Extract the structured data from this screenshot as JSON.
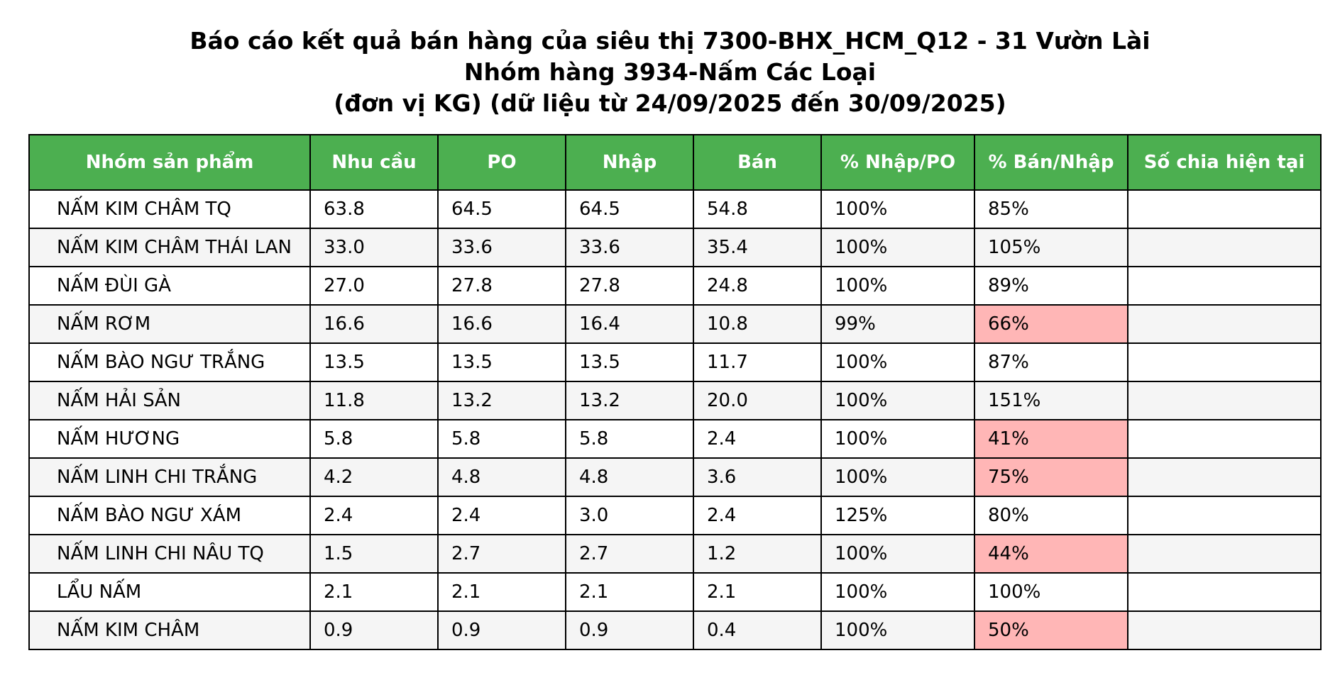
{
  "title": {
    "line1": "Báo cáo kết quả bán hàng của siêu thị 7300-BHX_HCM_Q12 - 31 Vườn Lài",
    "line2": "Nhóm hàng 3934-Nấm Các Loại",
    "line3": "(đơn vị KG) (dữ liệu từ 24/09/2025 đến 30/09/2025)"
  },
  "colors": {
    "header_bg": "#4caf50",
    "header_text": "#ffffff",
    "highlight_bg": "#ffb6b6",
    "alt_row_bg": "#f5f5f5"
  },
  "table": {
    "headers": [
      "Nhóm sản phẩm",
      "Nhu cầu",
      "PO",
      "Nhập",
      "Bán",
      "% Nhập/PO",
      "% Bán/Nhập",
      "Số chia hiện tại"
    ],
    "rows": [
      {
        "name": "NẤM KIM CHÂM TQ",
        "nhu_cau": "63.8",
        "po": "64.5",
        "nhap": "64.5",
        "ban": "54.8",
        "pct_nhap_po": "100%",
        "pct_ban_nhap": "85%",
        "so_chia": "",
        "highlight": false
      },
      {
        "name": "NẤM KIM CHÂM THÁI LAN",
        "nhu_cau": "33.0",
        "po": "33.6",
        "nhap": "33.6",
        "ban": "35.4",
        "pct_nhap_po": "100%",
        "pct_ban_nhap": "105%",
        "so_chia": "",
        "highlight": false
      },
      {
        "name": "NẤM ĐÙI GÀ",
        "nhu_cau": "27.0",
        "po": "27.8",
        "nhap": "27.8",
        "ban": "24.8",
        "pct_nhap_po": "100%",
        "pct_ban_nhap": "89%",
        "so_chia": "",
        "highlight": false
      },
      {
        "name": "NẤM RƠM",
        "nhu_cau": "16.6",
        "po": "16.6",
        "nhap": "16.4",
        "ban": "10.8",
        "pct_nhap_po": "99%",
        "pct_ban_nhap": "66%",
        "so_chia": "",
        "highlight": true
      },
      {
        "name": "NẤM BÀO NGƯ TRẮNG",
        "nhu_cau": "13.5",
        "po": "13.5",
        "nhap": "13.5",
        "ban": "11.7",
        "pct_nhap_po": "100%",
        "pct_ban_nhap": "87%",
        "so_chia": "",
        "highlight": false
      },
      {
        "name": "NẤM HẢI SẢN",
        "nhu_cau": "11.8",
        "po": "13.2",
        "nhap": "13.2",
        "ban": "20.0",
        "pct_nhap_po": "100%",
        "pct_ban_nhap": "151%",
        "so_chia": "",
        "highlight": false
      },
      {
        "name": "NẤM HƯƠNG",
        "nhu_cau": "5.8",
        "po": "5.8",
        "nhap": "5.8",
        "ban": "2.4",
        "pct_nhap_po": "100%",
        "pct_ban_nhap": "41%",
        "so_chia": "",
        "highlight": true
      },
      {
        "name": "NẤM LINH CHI TRẮNG",
        "nhu_cau": "4.2",
        "po": "4.8",
        "nhap": "4.8",
        "ban": "3.6",
        "pct_nhap_po": "100%",
        "pct_ban_nhap": "75%",
        "so_chia": "",
        "highlight": true
      },
      {
        "name": "NẤM BÀO NGƯ XÁM",
        "nhu_cau": "2.4",
        "po": "2.4",
        "nhap": "3.0",
        "ban": "2.4",
        "pct_nhap_po": "125%",
        "pct_ban_nhap": "80%",
        "so_chia": "",
        "highlight": false
      },
      {
        "name": "NẤM LINH CHI NÂU TQ",
        "nhu_cau": "1.5",
        "po": "2.7",
        "nhap": "2.7",
        "ban": "1.2",
        "pct_nhap_po": "100%",
        "pct_ban_nhap": "44%",
        "so_chia": "",
        "highlight": true
      },
      {
        "name": "LẨU NẤM",
        "nhu_cau": "2.1",
        "po": "2.1",
        "nhap": "2.1",
        "ban": "2.1",
        "pct_nhap_po": "100%",
        "pct_ban_nhap": "100%",
        "so_chia": "",
        "highlight": false
      },
      {
        "name": "NẤM KIM CHÂM",
        "nhu_cau": "0.9",
        "po": "0.9",
        "nhap": "0.9",
        "ban": "0.4",
        "pct_nhap_po": "100%",
        "pct_ban_nhap": "50%",
        "so_chia": "",
        "highlight": true
      }
    ]
  }
}
